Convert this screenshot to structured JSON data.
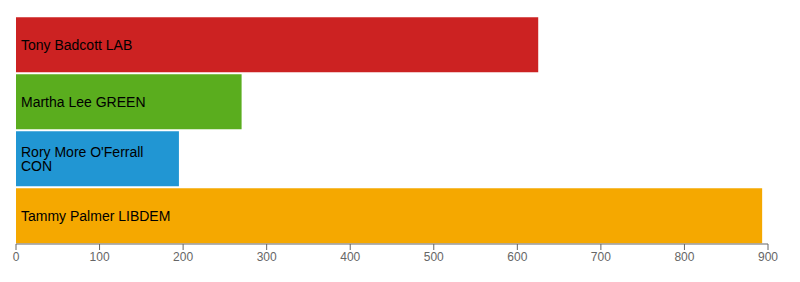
{
  "chart_data": {
    "type": "bar",
    "orientation": "horizontal",
    "categories": [
      "Tony Badcott LAB",
      "Martha Lee GREEN",
      "Rory More O'Ferrall CON",
      "Tammy Palmer LIBDEM"
    ],
    "values": [
      625,
      270,
      195,
      893
    ],
    "colors": [
      "#cc2222",
      "#5aad1e",
      "#2196d3",
      "#f5a800"
    ],
    "xlim": [
      0,
      900
    ],
    "xticks": [
      0,
      100,
      200,
      300,
      400,
      500,
      600,
      700,
      800,
      900
    ],
    "grid": false,
    "tick_labels": "x"
  }
}
